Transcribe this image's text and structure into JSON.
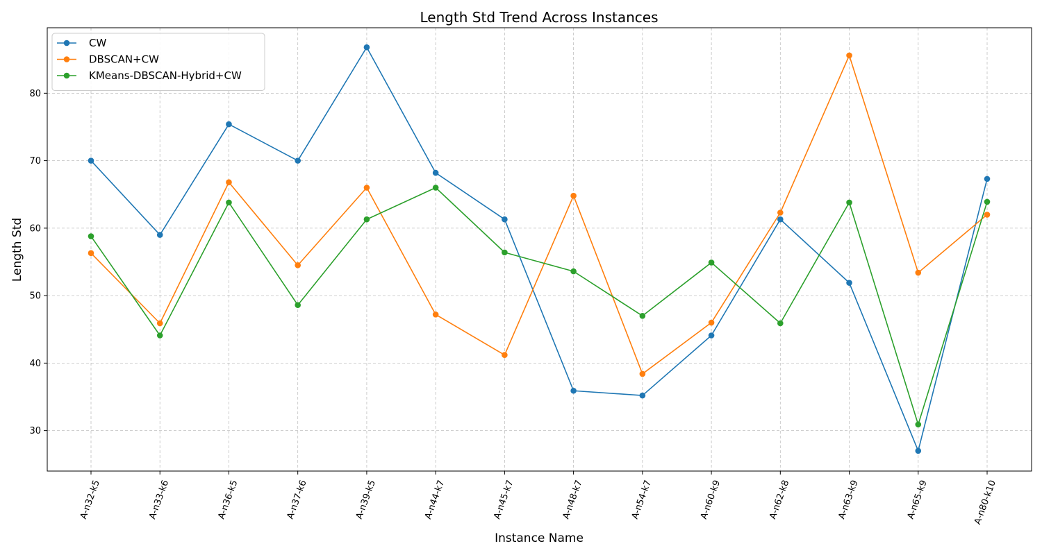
{
  "chart_data": {
    "type": "line",
    "title": "Length Std Trend Across Instances",
    "xlabel": "Instance Name",
    "ylabel": "Length Std",
    "categories": [
      "A-n32-k5",
      "A-n33-k6",
      "A-n36-k5",
      "A-n37-k6",
      "A-n39-k5",
      "A-n44-k7",
      "A-n45-k7",
      "A-n48-k7",
      "A-n54-k7",
      "A-n60-k9",
      "A-n62-k8",
      "A-n63-k9",
      "A-n65-k9",
      "A-n80-k10"
    ],
    "ylim": [
      24,
      89.7
    ],
    "yticks": [
      30,
      40,
      50,
      60,
      70,
      80
    ],
    "grid": true,
    "legend_position": "top-left",
    "series": [
      {
        "name": "CW",
        "color": "#1f77b4",
        "values": [
          70.0,
          59.0,
          75.4,
          70.0,
          86.8,
          68.2,
          61.3,
          35.9,
          35.2,
          44.1,
          61.3,
          51.9,
          27.0,
          67.3
        ]
      },
      {
        "name": "DBSCAN+CW",
        "color": "#ff7f0e",
        "values": [
          56.3,
          45.9,
          66.8,
          54.5,
          66.0,
          47.2,
          41.2,
          64.8,
          38.4,
          46.0,
          62.3,
          85.6,
          53.4,
          62.0
        ]
      },
      {
        "name": "KMeans-DBSCAN-Hybrid+CW",
        "color": "#2ca02c",
        "values": [
          58.8,
          44.1,
          63.8,
          48.6,
          61.3,
          66.0,
          56.4,
          53.6,
          47.0,
          54.9,
          45.9,
          63.8,
          30.9,
          63.9
        ]
      }
    ]
  }
}
